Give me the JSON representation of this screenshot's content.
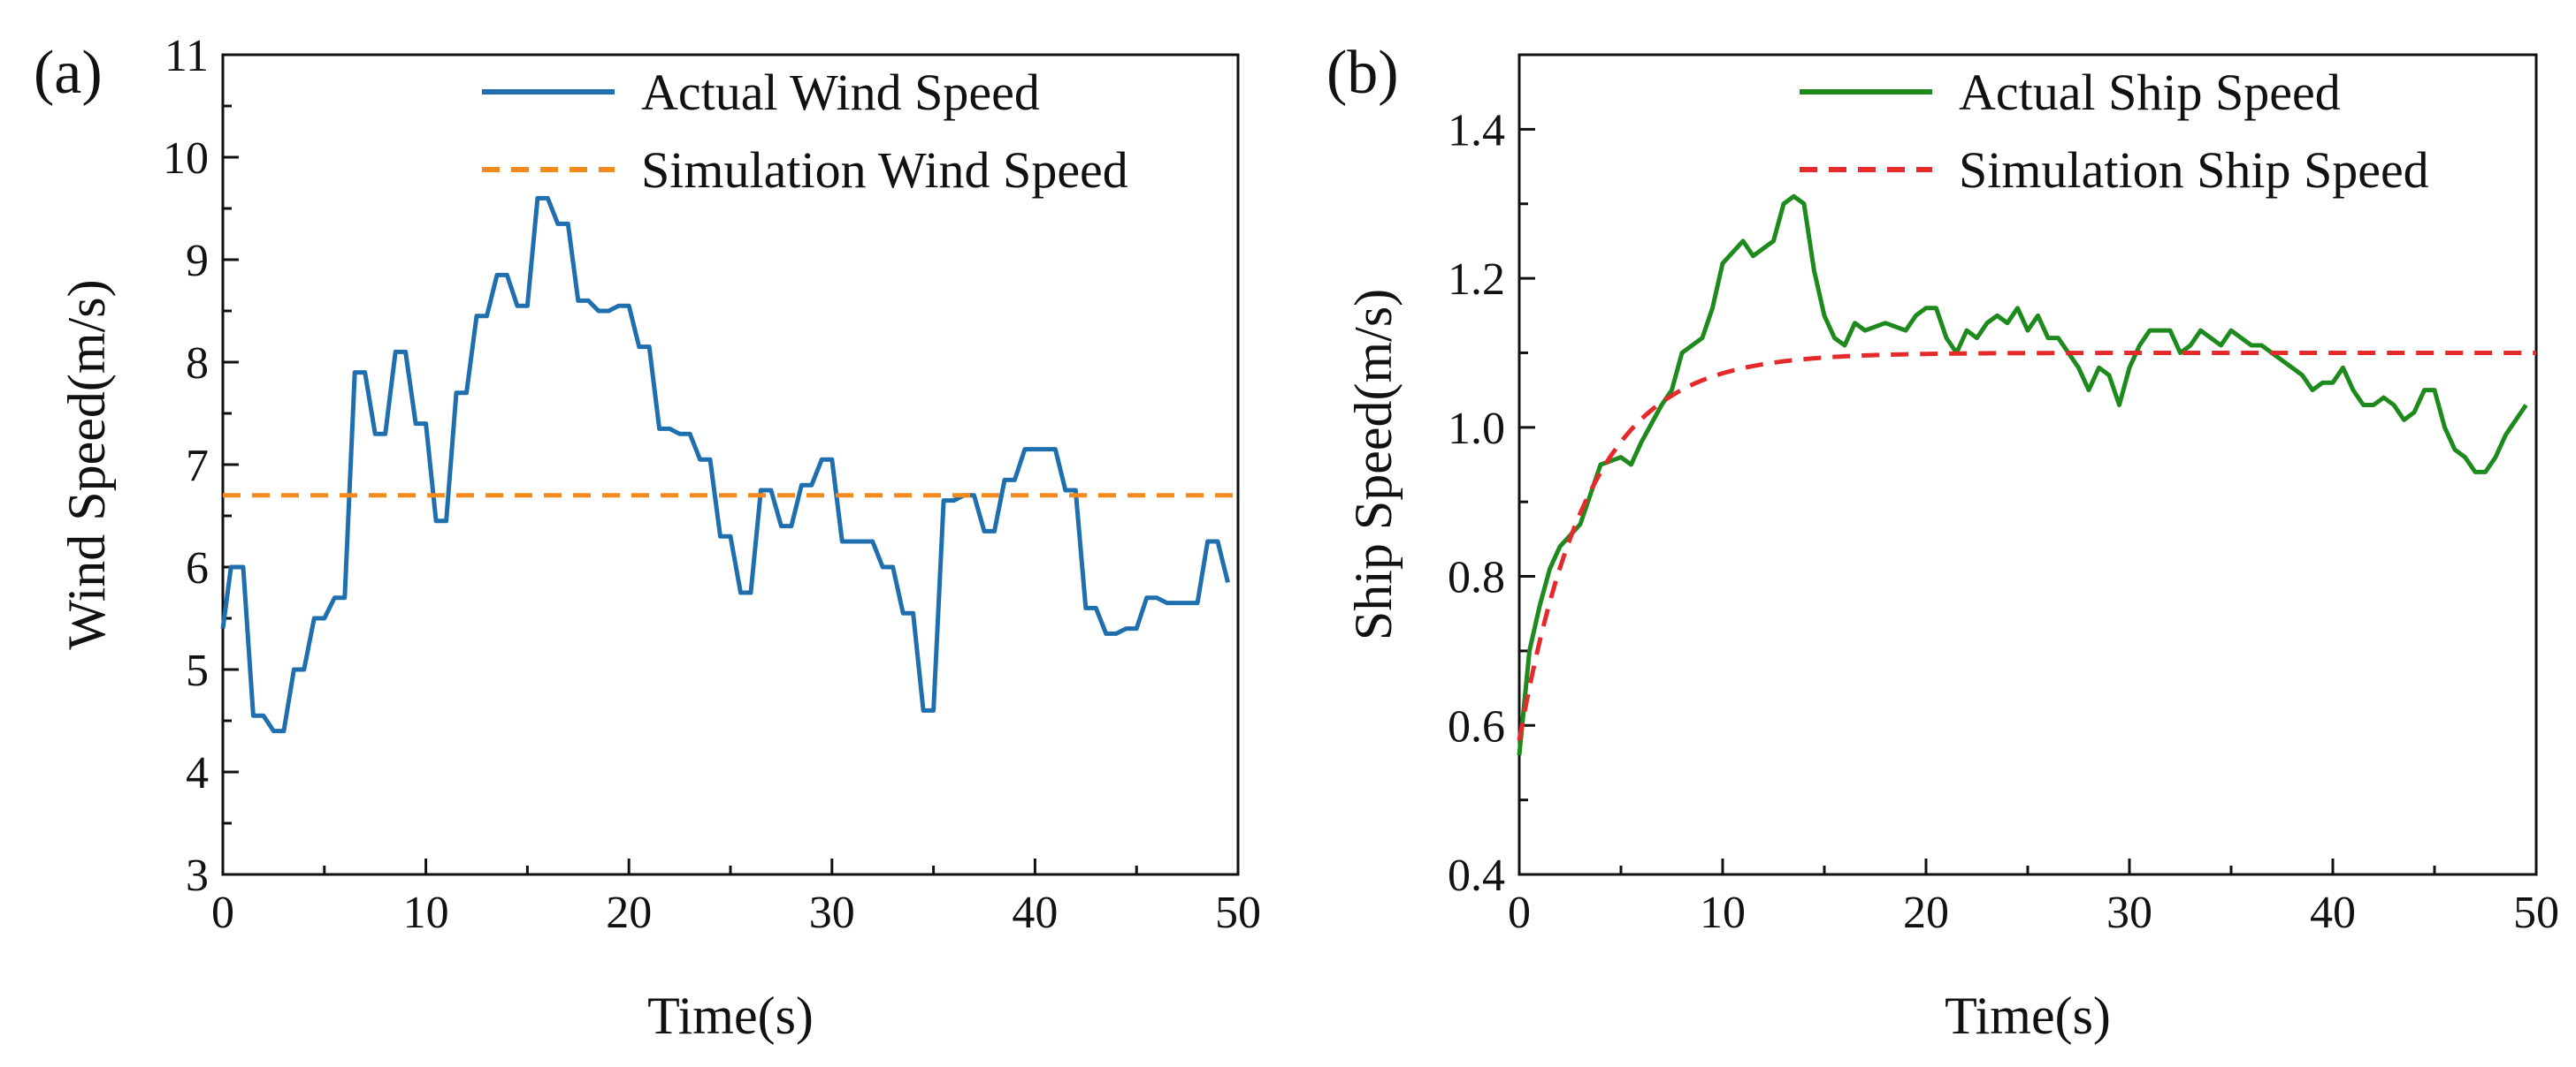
{
  "chart_data": [
    {
      "panel_label": "(a)",
      "type": "line",
      "xlabel": "Time(s)",
      "ylabel": "Wind Speed(m/s)",
      "xlim": [
        0,
        50
      ],
      "ylim": [
        3,
        11
      ],
      "xticks": [
        0,
        10,
        20,
        30,
        40,
        50
      ],
      "yticks": [
        3,
        4,
        5,
        6,
        7,
        8,
        9,
        10,
        11
      ],
      "grid": false,
      "legend_position": "top-right",
      "series": [
        {
          "name": "Actual Wind Speed",
          "color": "#1F6FAE",
          "style": "solid",
          "x": [
            0,
            0.4,
            1,
            1.5,
            2,
            2.5,
            3,
            3.5,
            4,
            4.5,
            5,
            5.5,
            6,
            6.5,
            7,
            7.5,
            8,
            8.5,
            9,
            9.5,
            10,
            10.5,
            11,
            11.5,
            12,
            12.5,
            13,
            13.5,
            14,
            14.5,
            15,
            15.5,
            16,
            16.5,
            17,
            17.5,
            18,
            18.5,
            19,
            19.5,
            20,
            20.5,
            21,
            21.5,
            22,
            22.5,
            23,
            23.5,
            24,
            24.5,
            25,
            25.5,
            26,
            26.5,
            27,
            27.5,
            28,
            28.5,
            29,
            29.5,
            30,
            30.5,
            31,
            31.5,
            32,
            32.5,
            33,
            33.5,
            34,
            34.5,
            35,
            35.5,
            36,
            36.5,
            37,
            37.5,
            38,
            38.5,
            39,
            39.5,
            40,
            40.5,
            41,
            41.5,
            42,
            42.5,
            43,
            43.5,
            44,
            44.5,
            45,
            45.5,
            46,
            46.5,
            47,
            47.5,
            48,
            48.5,
            49,
            49.5
          ],
          "y": [
            5.4,
            6.0,
            6.0,
            4.55,
            4.55,
            4.4,
            4.4,
            5.0,
            5.0,
            5.5,
            5.5,
            5.7,
            5.7,
            7.9,
            7.9,
            7.3,
            7.3,
            8.1,
            8.1,
            7.4,
            7.4,
            6.45,
            6.45,
            7.7,
            7.7,
            8.45,
            8.45,
            8.85,
            8.85,
            8.55,
            8.55,
            9.6,
            9.6,
            9.35,
            9.35,
            8.6,
            8.6,
            8.5,
            8.5,
            8.55,
            8.55,
            8.15,
            8.15,
            7.35,
            7.35,
            7.3,
            7.3,
            7.05,
            7.05,
            6.3,
            6.3,
            5.75,
            5.75,
            6.75,
            6.75,
            6.4,
            6.4,
            6.8,
            6.8,
            7.05,
            7.05,
            6.25,
            6.25,
            6.25,
            6.25,
            6.0,
            6.0,
            5.55,
            5.55,
            4.6,
            4.6,
            6.65,
            6.65,
            6.7,
            6.7,
            6.35,
            6.35,
            6.85,
            6.85,
            7.15,
            7.15,
            7.15,
            7.15,
            6.75,
            6.75,
            5.6,
            5.6,
            5.35,
            5.35,
            5.4,
            5.4,
            5.7,
            5.7,
            5.65,
            5.65,
            5.65,
            5.65,
            6.25,
            6.25,
            5.85
          ]
        },
        {
          "name": "Simulation Wind Speed",
          "color": "#F28A1E",
          "style": "dashed",
          "x": [
            0,
            50
          ],
          "y": [
            6.7,
            6.7
          ]
        }
      ]
    },
    {
      "panel_label": "(b)",
      "type": "line",
      "xlabel": "Time(s)",
      "ylabel": "Ship Speed(m/s)",
      "xlim": [
        0,
        50
      ],
      "ylim": [
        0.4,
        1.5
      ],
      "xticks": [
        0,
        10,
        20,
        30,
        40,
        50
      ],
      "yticks": [
        0.4,
        0.6,
        0.8,
        1.0,
        1.2,
        1.4
      ],
      "ytick_labels": [
        "0.4",
        "0.6",
        "0.8",
        "1.0",
        "1.2",
        "1.4"
      ],
      "grid": false,
      "legend_position": "top-right",
      "series": [
        {
          "name": "Actual Ship Speed",
          "color": "#1E8A1E",
          "style": "solid",
          "x": [
            0,
            0.5,
            1,
            1.5,
            2,
            3,
            4,
            5,
            5.5,
            6,
            7,
            7.5,
            8,
            8.5,
            9,
            9.5,
            10,
            11,
            11.5,
            12,
            12.5,
            13,
            13.5,
            14,
            14.5,
            15,
            15.5,
            16,
            16.5,
            17,
            18,
            19,
            19.5,
            20,
            20.5,
            21,
            21.5,
            22,
            22.5,
            23,
            23.5,
            24,
            24.5,
            25,
            25.5,
            26,
            26.5,
            27,
            27.5,
            28,
            28.5,
            29,
            29.5,
            30,
            30.5,
            31,
            31.5,
            32,
            32.5,
            33,
            33.5,
            34,
            34.5,
            35,
            35.5,
            36,
            36.5,
            37,
            37.5,
            38,
            38.5,
            39,
            39.5,
            40,
            40.5,
            41,
            41.5,
            42,
            42.5,
            43,
            43.5,
            44,
            44.5,
            45,
            45.5,
            46,
            46.5,
            47,
            47.5,
            48,
            48.5,
            49,
            49.5
          ],
          "y": [
            0.56,
            0.7,
            0.76,
            0.81,
            0.84,
            0.87,
            0.95,
            0.96,
            0.95,
            0.98,
            1.03,
            1.05,
            1.1,
            1.11,
            1.12,
            1.16,
            1.22,
            1.25,
            1.23,
            1.24,
            1.25,
            1.3,
            1.31,
            1.3,
            1.21,
            1.15,
            1.12,
            1.11,
            1.14,
            1.13,
            1.14,
            1.13,
            1.15,
            1.16,
            1.16,
            1.12,
            1.1,
            1.13,
            1.12,
            1.14,
            1.15,
            1.14,
            1.16,
            1.13,
            1.15,
            1.12,
            1.12,
            1.1,
            1.08,
            1.05,
            1.08,
            1.07,
            1.03,
            1.08,
            1.11,
            1.13,
            1.13,
            1.13,
            1.1,
            1.11,
            1.13,
            1.12,
            1.11,
            1.13,
            1.12,
            1.11,
            1.11,
            1.1,
            1.09,
            1.08,
            1.07,
            1.05,
            1.06,
            1.06,
            1.08,
            1.05,
            1.03,
            1.03,
            1.04,
            1.03,
            1.01,
            1.02,
            1.05,
            1.05,
            1.0,
            0.97,
            0.96,
            0.94,
            0.94,
            0.96,
            0.99,
            1.01,
            1.03
          ]
        },
        {
          "name": "Simulation Ship Speed",
          "color": "#E42A2A",
          "style": "dashed",
          "curve": "first-order response",
          "start": 0.58,
          "final": 1.1,
          "time_constant_s": 3.4
        }
      ]
    }
  ]
}
